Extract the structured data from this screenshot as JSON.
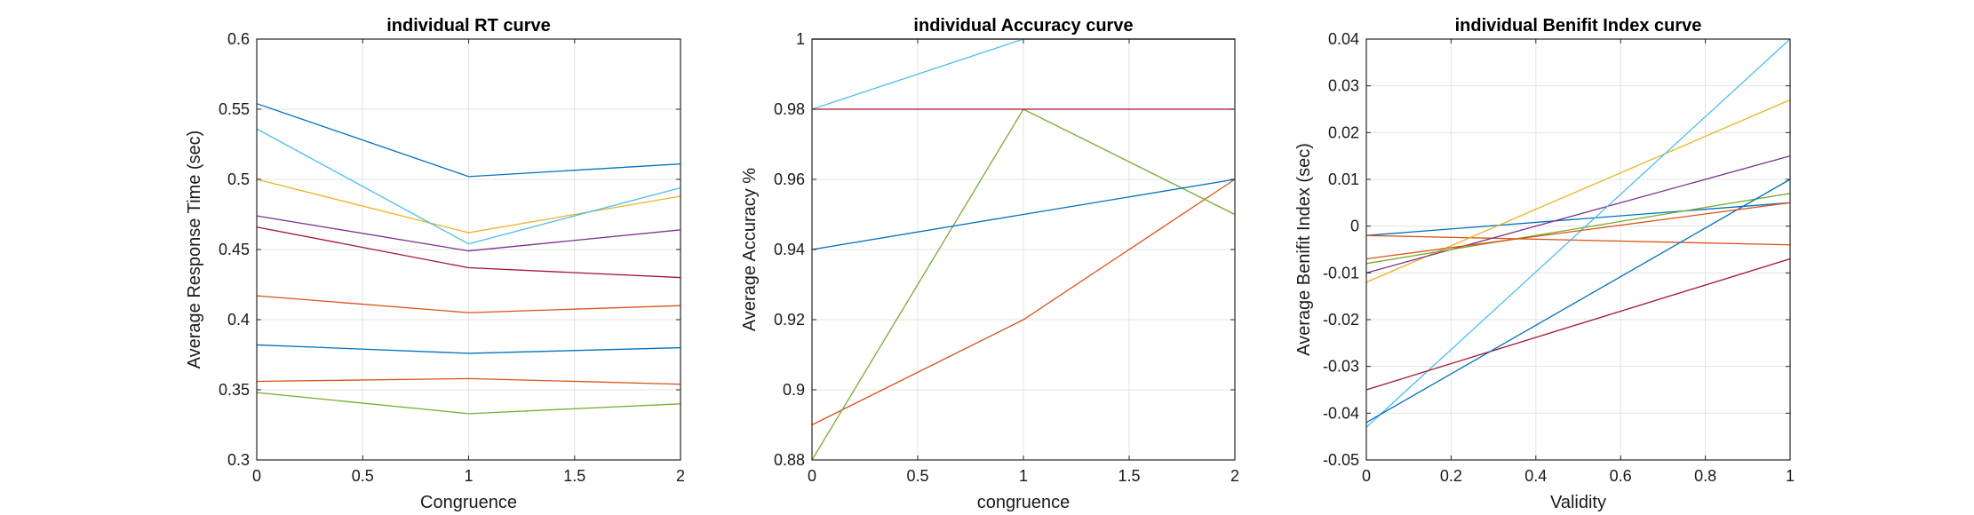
{
  "chart_data": [
    {
      "type": "line",
      "title": "individual RT curve",
      "xlabel": "Congruence",
      "ylabel": "Average Response Time (sec)",
      "xlim": [
        0,
        2
      ],
      "ylim": [
        0.3,
        0.6
      ],
      "xticks": [
        0,
        0.5,
        1,
        1.5,
        2
      ],
      "xtick_labels": [
        "0",
        "0.5",
        "1",
        "1.5",
        "2"
      ],
      "yticks": [
        0.3,
        0.35,
        0.4,
        0.45,
        0.5,
        0.55,
        0.6
      ],
      "ytick_labels": [
        "0.3",
        "0.35",
        "0.4",
        "0.45",
        "0.5",
        "0.55",
        "0.6"
      ],
      "grid": true,
      "x": [
        0,
        1,
        2
      ],
      "series": [
        {
          "color": "#0072BD",
          "values": [
            0.554,
            0.502,
            0.511
          ]
        },
        {
          "color": "#D95319",
          "values": [
            0.417,
            0.405,
            0.41
          ]
        },
        {
          "color": "#EDB120",
          "values": [
            0.5,
            0.462,
            0.488
          ]
        },
        {
          "color": "#7E2F8E",
          "values": [
            0.474,
            0.449,
            0.464
          ]
        },
        {
          "color": "#77AC30",
          "values": [
            0.348,
            0.333,
            0.34
          ]
        },
        {
          "color": "#4DBEEE",
          "values": [
            0.536,
            0.454,
            0.494
          ]
        },
        {
          "color": "#A2142F",
          "values": [
            0.466,
            0.437,
            0.43
          ]
        },
        {
          "color": "#0072BD",
          "values": [
            0.382,
            0.376,
            0.38
          ]
        },
        {
          "color": "#D95319",
          "values": [
            0.356,
            0.358,
            0.354
          ]
        }
      ]
    },
    {
      "type": "line",
      "title": "individual Accuracy curve",
      "xlabel": "congruence",
      "ylabel": "Average Accuracy %",
      "xlim": [
        0,
        2
      ],
      "ylim": [
        0.88,
        1
      ],
      "xticks": [
        0,
        0.5,
        1,
        1.5,
        2
      ],
      "xtick_labels": [
        "0",
        "0.5",
        "1",
        "1.5",
        "2"
      ],
      "yticks": [
        0.88,
        0.9,
        0.92,
        0.94,
        0.96,
        0.98,
        1
      ],
      "ytick_labels": [
        "0.88",
        "0.9",
        "0.92",
        "0.94",
        "0.96",
        "0.98",
        "1"
      ],
      "grid": true,
      "x": [
        0,
        1,
        2
      ],
      "series": [
        {
          "color": "#0072BD",
          "values": [
            1.0,
            1.0,
            1.0
          ]
        },
        {
          "color": "#D95319",
          "values": [
            0.89,
            0.92,
            0.96
          ]
        },
        {
          "color": "#EDB120",
          "values": [
            1.0,
            1.0,
            1.0
          ]
        },
        {
          "color": "#7E2F8E",
          "values": [
            1.0,
            1.0,
            1.0
          ]
        },
        {
          "color": "#77AC30",
          "values": [
            0.88,
            0.98,
            0.95
          ]
        },
        {
          "color": "#4DBEEE",
          "values": [
            0.98,
            1.0,
            1.0
          ]
        },
        {
          "color": "#A2142F",
          "values": [
            0.98,
            0.98,
            0.98
          ]
        },
        {
          "color": "#0072BD",
          "values": [
            0.94,
            0.95,
            0.96
          ]
        }
      ]
    },
    {
      "type": "line",
      "title": "individual Benifit Index curve",
      "xlabel": "Validity",
      "ylabel": "Average Benifit Index (sec)",
      "xlim": [
        0,
        1
      ],
      "ylim": [
        -0.05,
        0.04
      ],
      "xticks": [
        0,
        0.2,
        0.4,
        0.6,
        0.8,
        1
      ],
      "xtick_labels": [
        "0",
        "0.2",
        "0.4",
        "0.6",
        "0.8",
        "1"
      ],
      "yticks": [
        -0.05,
        -0.04,
        -0.03,
        -0.02,
        -0.01,
        0,
        0.01,
        0.02,
        0.03,
        0.04
      ],
      "ytick_labels": [
        "-0.05",
        "-0.04",
        "-0.03",
        "-0.02",
        "-0.01",
        "0",
        "0.01",
        "0.02",
        "0.03",
        "0.04"
      ],
      "grid": true,
      "x": [
        0,
        1
      ],
      "series": [
        {
          "color": "#0072BD",
          "values": [
            -0.002,
            0.005
          ]
        },
        {
          "color": "#D95319",
          "values": [
            -0.002,
            -0.004
          ]
        },
        {
          "color": "#EDB120",
          "values": [
            -0.012,
            0.027
          ]
        },
        {
          "color": "#7E2F8E",
          "values": [
            -0.01,
            0.015
          ]
        },
        {
          "color": "#77AC30",
          "values": [
            -0.008,
            0.007
          ]
        },
        {
          "color": "#4DBEEE",
          "values": [
            -0.043,
            0.04
          ]
        },
        {
          "color": "#A2142F",
          "values": [
            -0.035,
            -0.007
          ]
        },
        {
          "color": "#0072BD",
          "values": [
            -0.042,
            0.01
          ]
        },
        {
          "color": "#D95319",
          "values": [
            -0.007,
            0.005
          ]
        }
      ]
    }
  ]
}
